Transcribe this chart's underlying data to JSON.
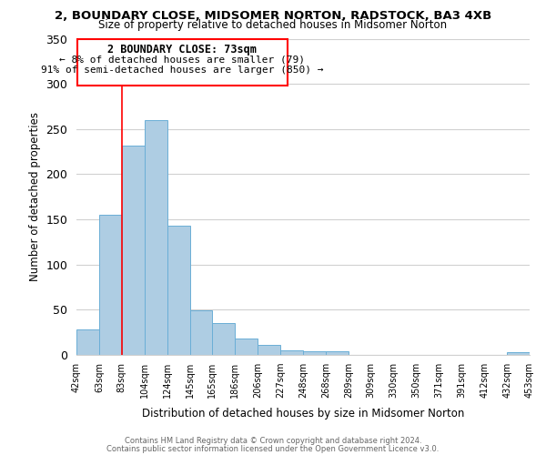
{
  "title1": "2, BOUNDARY CLOSE, MIDSOMER NORTON, RADSTOCK, BA3 4XB",
  "title2": "Size of property relative to detached houses in Midsomer Norton",
  "xlabel": "Distribution of detached houses by size in Midsomer Norton",
  "ylabel": "Number of detached properties",
  "bar_values": [
    28,
    155,
    232,
    260,
    143,
    49,
    35,
    18,
    11,
    5,
    4,
    4,
    0,
    0,
    0,
    0,
    0,
    0,
    0,
    3
  ],
  "bar_labels": [
    "42sqm",
    "63sqm",
    "83sqm",
    "104sqm",
    "124sqm",
    "145sqm",
    "165sqm",
    "186sqm",
    "206sqm",
    "227sqm",
    "248sqm",
    "268sqm",
    "289sqm",
    "309sqm",
    "330sqm",
    "350sqm",
    "371sqm",
    "391sqm",
    "412sqm",
    "432sqm",
    "453sqm"
  ],
  "bar_color": "#aecde3",
  "bar_edge_color": "#6aaed6",
  "ylim": [
    0,
    350
  ],
  "yticks": [
    0,
    50,
    100,
    150,
    200,
    250,
    300,
    350
  ],
  "annotation_line1": "2 BOUNDARY CLOSE: 73sqm",
  "annotation_line2": "← 8% of detached houses are smaller (79)",
  "annotation_line3": "91% of semi-detached houses are larger (850) →",
  "footnote1": "Contains HM Land Registry data © Crown copyright and database right 2024.",
  "footnote2": "Contains public sector information licensed under the Open Government Licence v3.0.",
  "background_color": "#ffffff",
  "grid_color": "#d0d0d0"
}
